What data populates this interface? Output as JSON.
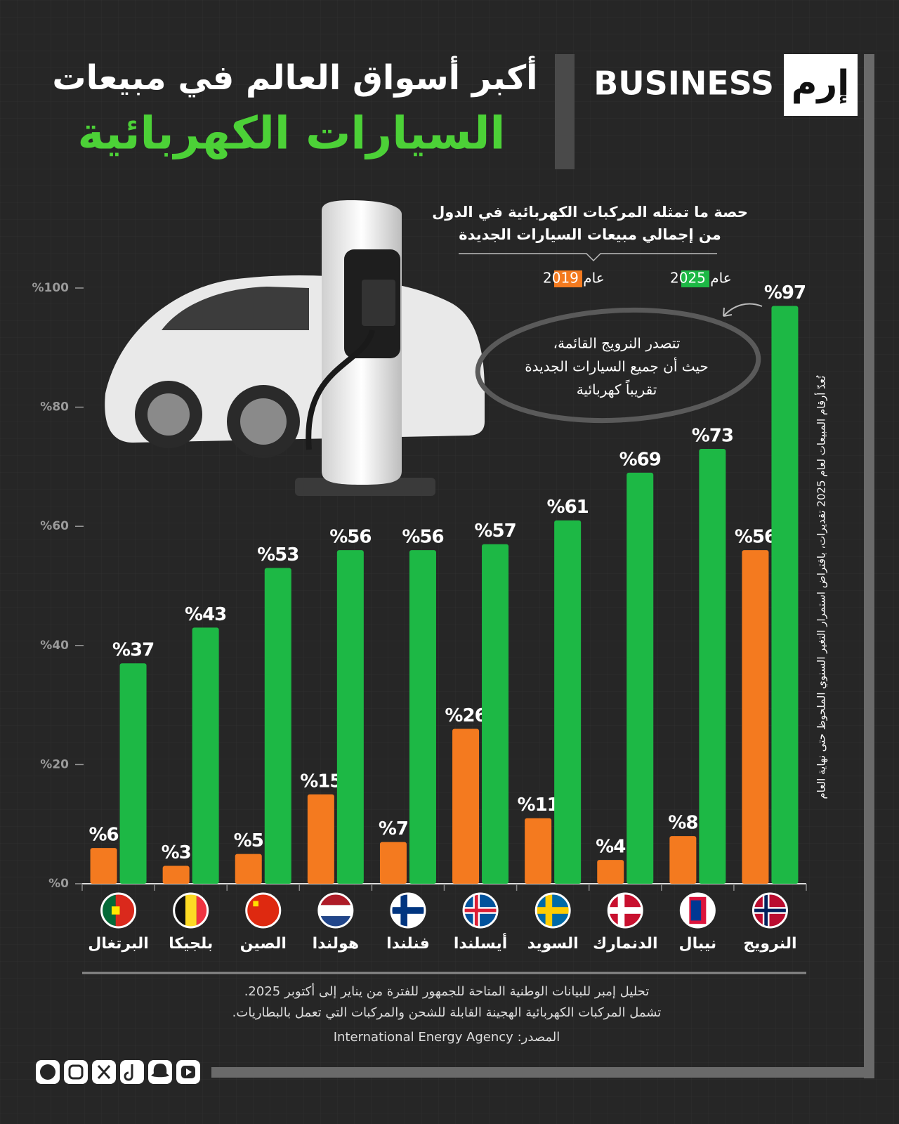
{
  "header": {
    "brand": "BUSINESS",
    "logo": "إرم"
  },
  "chart_data": {
    "type": "bar",
    "title": "أكبر أسواق العالم في مبيعات",
    "title_highlight": "السيارات الكهربائية",
    "subtitle": [
      "حصة ما تمثله المركبات الكهربائية في الدول",
      "من إجمالي مبيعات السيارات الجديدة"
    ],
    "annotation": [
      "تتصدر النرويج القائمة،",
      "حيث أن جميع السيارات الجديدة",
      "تقريباً كهربائية"
    ],
    "side_note": "تُعدّ أرقام المبيعات لعام 2025 تقديرات، بافتراض استمرار التغير السنوي الملحوظ حتى نهاية العام",
    "categories": [
      "البرتغال",
      "بلجيكا",
      "الصين",
      "هولندا",
      "فنلندا",
      "أيسلندا",
      "السويد",
      "الدنمارك",
      "نيبال",
      "النرويج"
    ],
    "series": [
      {
        "name": "عام 2019",
        "color": "#f47a1f",
        "values": [
          6,
          3,
          5,
          15,
          7,
          26,
          11,
          4,
          8,
          56
        ],
        "value_labels": [
          "%6",
          "%3",
          "%5",
          "%15",
          "%7",
          "%26",
          "%11",
          "%4",
          "%8",
          "%56"
        ]
      },
      {
        "name": "عام 2025",
        "color": "#1db845",
        "values": [
          37,
          43,
          53,
          56,
          56,
          57,
          61,
          69,
          73,
          97
        ],
        "value_labels": [
          "%37",
          "%43",
          "%53",
          "%56",
          "%56",
          "%57",
          "%61",
          "%69",
          "%73",
          "%97"
        ]
      }
    ],
    "ylim": [
      0,
      100
    ],
    "yticks": [
      {
        "value": 0,
        "label": "%0"
      },
      {
        "value": 20,
        "label": "%20"
      },
      {
        "value": 40,
        "label": "%40"
      },
      {
        "value": 60,
        "label": "%60"
      },
      {
        "value": 80,
        "label": "%80"
      },
      {
        "value": 100,
        "label": "%100"
      }
    ],
    "notes": [
      "تحليل إمبر للبيانات الوطنية المتاحة للجمهور للفترة من يناير إلى أكتوبر 2025.",
      "تشمل المركبات الكهربائية الهجينة القابلة للشحن والمركبات التي تعمل بالبطاريات."
    ],
    "source": "المصدر: International Energy Agency"
  }
}
